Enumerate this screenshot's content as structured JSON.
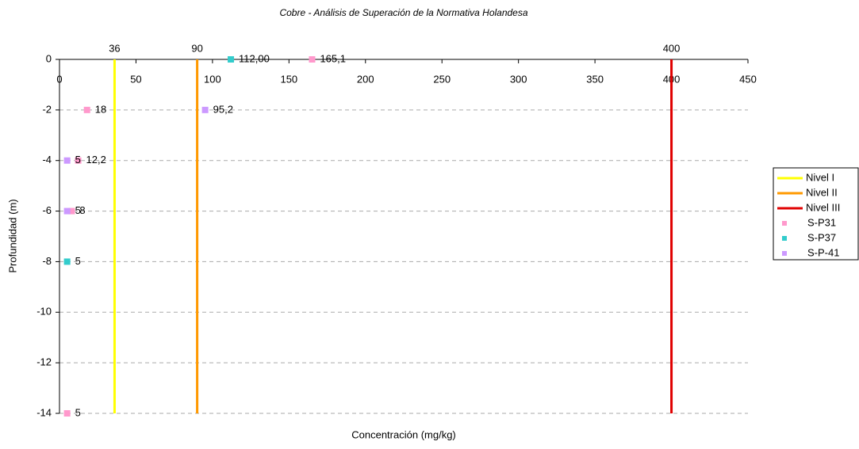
{
  "chart_data": {
    "type": "scatter",
    "title": "Cobre - Análisis de Superación de la Normativa Holandesa",
    "x_label": "Concentración (mg/kg)",
    "y_label": "Profundidad (m)",
    "xlim": [
      0,
      450
    ],
    "xticks": [
      0,
      50,
      100,
      150,
      200,
      250,
      300,
      350,
      400,
      450
    ],
    "ylim": [
      -14,
      0
    ],
    "yticks": [
      -14,
      -12,
      -10,
      -8,
      -6,
      -4,
      -2,
      0
    ],
    "grid": true,
    "legend": "right",
    "reference_lines": [
      {
        "name": "Nivel I",
        "value": 36,
        "color": "#ffff00"
      },
      {
        "name": "Nivel II",
        "value": 90,
        "color": "#ff9900"
      },
      {
        "name": "Nivel III",
        "value": 400,
        "color": "#e00000"
      }
    ],
    "series": [
      {
        "name": "S-P31",
        "color": "#ff99cc",
        "x": [
          165.1,
          18,
          12.2,
          8,
          5
        ],
        "values": [
          0,
          -2,
          -4,
          -6,
          -14
        ],
        "value_labels": [
          "165,1",
          "18",
          "12,2",
          "8",
          "5"
        ]
      },
      {
        "name": "S-P37",
        "color": "#33cccc",
        "x": [
          112,
          5
        ],
        "values": [
          0,
          -8
        ],
        "value_labels": [
          "112,00",
          "5"
        ]
      },
      {
        "name": "S-P-41",
        "color": "#cc99ff",
        "x": [
          95.2,
          5,
          5
        ],
        "values": [
          -2,
          -4,
          -6
        ],
        "value_labels": [
          "95,2",
          "5",
          "5"
        ]
      }
    ]
  }
}
